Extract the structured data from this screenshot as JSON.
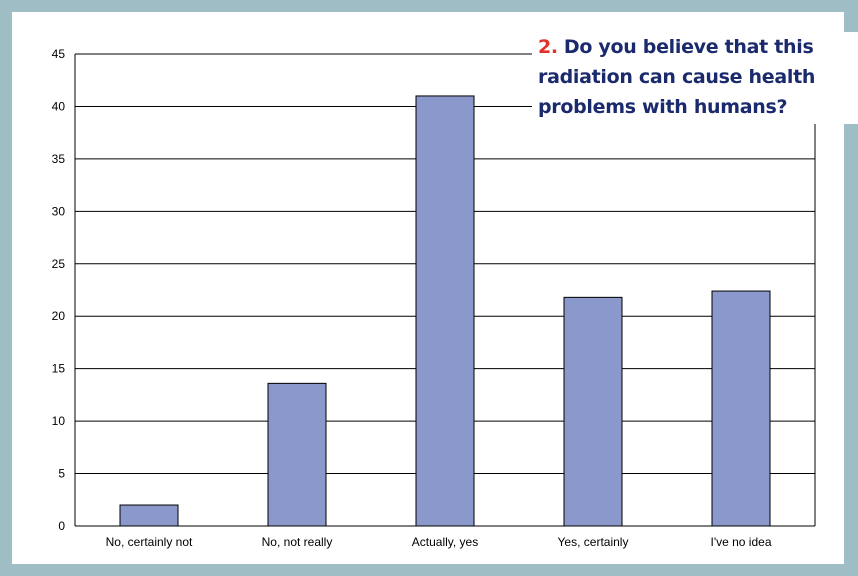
{
  "question": {
    "number": "2.",
    "text": "Do you believe that this radiation can cause health problems with humans?"
  },
  "colors": {
    "bar": "#8b98cc",
    "bar_stroke": "#000000",
    "frame": "#9fbdc4",
    "question_number": "#e4302b",
    "question_text": "#1a2a6c"
  },
  "chart_data": {
    "type": "bar",
    "categories": [
      "No, certainly not",
      "No, not really",
      "Actually, yes",
      "Yes, certainly",
      "I've no idea"
    ],
    "values": [
      2,
      13.6,
      41,
      21.8,
      22.4
    ],
    "title": "",
    "xlabel": "",
    "ylabel": "",
    "ylim": [
      0,
      45
    ],
    "yticks": [
      0,
      5,
      10,
      15,
      20,
      25,
      30,
      35,
      40,
      45
    ],
    "grid": true
  }
}
